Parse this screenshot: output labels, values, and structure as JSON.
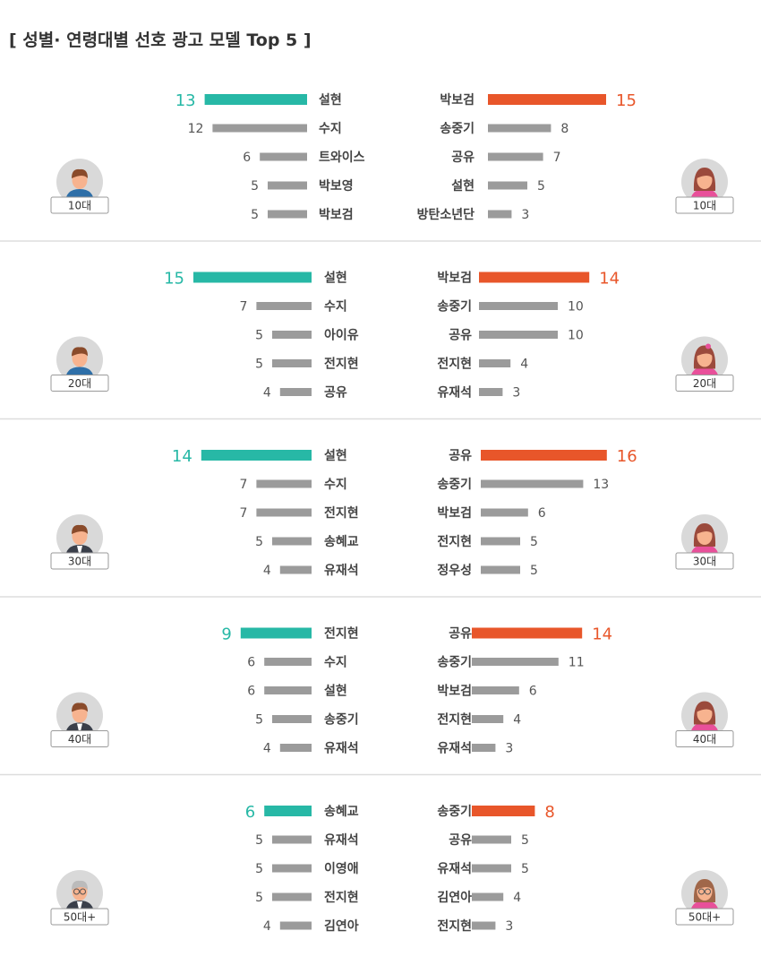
{
  "title": "[ 성별· 연령대별 선호 광고 모델 Top 5 ]",
  "colors": {
    "male_top": "#27b8a6",
    "female_top": "#e8562a",
    "bar": "#9b9b9b",
    "divider": "#dddddd",
    "avatar_bg": "#d9d9d9"
  },
  "chart_data": {
    "type": "bar",
    "title": "[ 성별· 연령대별 선호 광고 모델 Top 5 ]",
    "groups": [
      {
        "age": "10대",
        "male": [
          {
            "name": "설현",
            "value": 13
          },
          {
            "name": "수지",
            "value": 12
          },
          {
            "name": "트와이스",
            "value": 6
          },
          {
            "name": "박보영",
            "value": 5
          },
          {
            "name": "박보검",
            "value": 5
          }
        ],
        "female": [
          {
            "name": "박보검",
            "value": 15
          },
          {
            "name": "송중기",
            "value": 8
          },
          {
            "name": "공유",
            "value": 7
          },
          {
            "name": "설현",
            "value": 5
          },
          {
            "name": "방탄소년단",
            "value": 3
          }
        ]
      },
      {
        "age": "20대",
        "male": [
          {
            "name": "설현",
            "value": 15
          },
          {
            "name": "수지",
            "value": 7
          },
          {
            "name": "아이유",
            "value": 5
          },
          {
            "name": "전지현",
            "value": 5
          },
          {
            "name": "공유",
            "value": 4
          }
        ],
        "female": [
          {
            "name": "박보검",
            "value": 14
          },
          {
            "name": "송중기",
            "value": 10
          },
          {
            "name": "공유",
            "value": 10
          },
          {
            "name": "전지현",
            "value": 4
          },
          {
            "name": "유재석",
            "value": 3
          }
        ]
      },
      {
        "age": "30대",
        "male": [
          {
            "name": "설현",
            "value": 14
          },
          {
            "name": "수지",
            "value": 7
          },
          {
            "name": "전지현",
            "value": 7
          },
          {
            "name": "송혜교",
            "value": 5
          },
          {
            "name": "유재석",
            "value": 4
          }
        ],
        "female": [
          {
            "name": "공유",
            "value": 16
          },
          {
            "name": "송중기",
            "value": 13
          },
          {
            "name": "박보검",
            "value": 6
          },
          {
            "name": "전지현",
            "value": 5
          },
          {
            "name": "정우성",
            "value": 5
          }
        ]
      },
      {
        "age": "40대",
        "male": [
          {
            "name": "전지현",
            "value": 9
          },
          {
            "name": "수지",
            "value": 6
          },
          {
            "name": "설현",
            "value": 6
          },
          {
            "name": "송중기",
            "value": 5
          },
          {
            "name": "유재석",
            "value": 4
          }
        ],
        "female": [
          {
            "name": "공유",
            "value": 14
          },
          {
            "name": "송중기",
            "value": 11
          },
          {
            "name": "박보검",
            "value": 6
          },
          {
            "name": "전지현",
            "value": 4
          },
          {
            "name": "유재석",
            "value": 3
          }
        ]
      },
      {
        "age": "50대+",
        "male": [
          {
            "name": "송혜교",
            "value": 6
          },
          {
            "name": "유재석",
            "value": 5
          },
          {
            "name": "이영애",
            "value": 5
          },
          {
            "name": "전지현",
            "value": 5
          },
          {
            "name": "김연아",
            "value": 4
          }
        ],
        "female": [
          {
            "name": "송중기",
            "value": 8
          },
          {
            "name": "공유",
            "value": 5
          },
          {
            "name": "유재석",
            "value": 5
          },
          {
            "name": "김연아",
            "value": 4
          },
          {
            "name": "전지현",
            "value": 3
          }
        ]
      }
    ]
  }
}
